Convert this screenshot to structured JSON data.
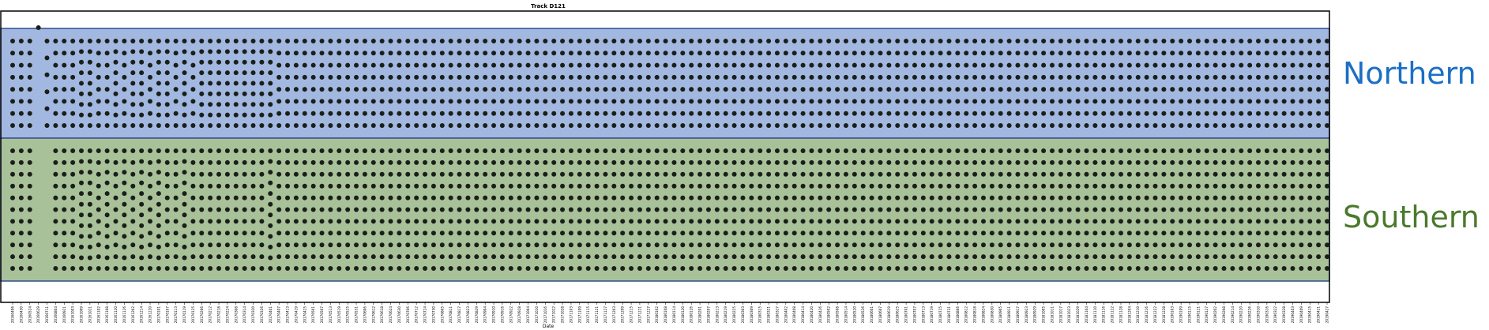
{
  "chart_data": {
    "type": "scatter",
    "title": "Track D121",
    "xlabel": "Date",
    "ylabel": "",
    "grid": false,
    "x_scale": "categorical-dates",
    "colors": {
      "northern_fill": "#a3b8e0",
      "southern_fill": "#a9c199",
      "band_edge": "#2f4f8f",
      "point": "#1a1f1a",
      "northern_text": "#1b6fc4",
      "southern_text": "#4a7a2c"
    },
    "regions": [
      {
        "label": "Northern",
        "rows": 8
      },
      {
        "label": "Southern",
        "rows": 11
      }
    ],
    "x_tick_labels": [
      "20160406",
      "20160430",
      "20160524",
      "20160629",
      "20160711",
      "20160804",
      "20160921",
      "20161003",
      "20161009",
      "20161021",
      "20161102",
      "20161108",
      "20161120",
      "20161126",
      "20161202",
      "20161214",
      "20161220",
      "20170101",
      "20170107",
      "20170113",
      "20170119",
      "20170125",
      "20170206",
      "20170212",
      "20170218",
      "20170224",
      "20170308",
      "20170314",
      "20170320",
      "20170326",
      "20170401",
      "20170407",
      "20170413",
      "20170419",
      "20170425",
      "20170501",
      "20170507",
      "20170513",
      "20170519",
      "20170525",
      "20170531",
      "20170606",
      "20170612",
      "20170618",
      "20170624",
      "20170630",
      "20170706",
      "20170712",
      "20170724",
      "20170730",
      "20170805",
      "20170811",
      "20170817",
      "20170823",
      "20170829",
      "20170904",
      "20170910",
      "20170916",
      "20170922",
      "20170928",
      "20171004",
      "20171010",
      "20171016",
      "20171022",
      "20171028",
      "20171103",
      "20171109",
      "20171115",
      "20171121",
      "20171127",
      "20171203",
      "20171209",
      "20171215",
      "20171221",
      "20171227",
      "20180102",
      "20180108",
      "20180114",
      "20180120",
      "20180126",
      "20180201",
      "20180207",
      "20180213",
      "20180219",
      "20180225",
      "20180303",
      "20180309",
      "20180315",
      "20180321",
      "20180327",
      "20180402",
      "20180408",
      "20180414",
      "20180420",
      "20180426",
      "20180502",
      "20180508",
      "20180514",
      "20180520",
      "20180526",
      "20180601",
      "20180607",
      "20180619",
      "20180625",
      "20180701",
      "20180707",
      "20180713",
      "20180719",
      "20180725",
      "20180731",
      "20180806",
      "20180812",
      "20180818",
      "20180824",
      "20180830",
      "20180905",
      "20180911",
      "20180917",
      "20180923",
      "20180929",
      "20181005",
      "20181011",
      "20181017",
      "20181023",
      "20181029",
      "20181104",
      "20181110",
      "20181116",
      "20181122",
      "20181128",
      "20181204",
      "20181210",
      "20181216",
      "20181222",
      "20181228",
      "20190103",
      "20190109",
      "20190115",
      "20190121",
      "20190127",
      "20190202",
      "20190208",
      "20190214",
      "20190220",
      "20190226",
      "20190310",
      "20190316",
      "20190322",
      "20190328",
      "20190403",
      "20190409",
      "20190415",
      "20190421",
      "20190427"
    ],
    "columns": [
      {
        "date": "20160406",
        "n": 8,
        "s": 11
      },
      {
        "date": "20160430",
        "n": 8,
        "s": 11
      },
      {
        "date": "20160524",
        "n": 8,
        "s": 11
      },
      {
        "date": "20160629",
        "n": 1,
        "s": 0
      },
      {
        "date": "20160711",
        "n": 6,
        "s": 0
      },
      {
        "date": "20160804",
        "n": 8,
        "s": 11
      },
      {
        "date": "20160921",
        "n": 8,
        "s": 11
      },
      {
        "date": "20161003",
        "n": 8,
        "s": 11
      },
      {
        "date": "20161009",
        "n": 9,
        "s": 12
      },
      {
        "date": "20161021",
        "n": 9,
        "s": 12
      },
      {
        "date": "20161102",
        "n": 8,
        "s": 11
      },
      {
        "date": "20161108",
        "n": 8,
        "s": 12
      },
      {
        "date": "20161120",
        "n": 9,
        "s": 11
      },
      {
        "date": "20161126",
        "n": 8,
        "s": 12
      },
      {
        "date": "20161202",
        "n": 9,
        "s": 11
      },
      {
        "date": "20161214",
        "n": 9,
        "s": 12
      },
      {
        "date": "20161220",
        "n": 8,
        "s": 11
      },
      {
        "date": "20170101",
        "n": 9,
        "s": 12
      },
      {
        "date": "20170107",
        "n": 9,
        "s": 11
      },
      {
        "date": "20170113",
        "n": 8,
        "s": 11
      },
      {
        "date": "20170119",
        "n": 9,
        "s": 12
      },
      {
        "date": "20170125",
        "n": 8,
        "s": 11
      },
      {
        "date": "20170206",
        "n": 9,
        "s": 11
      },
      {
        "date": "20170212",
        "n": 9,
        "s": 11
      },
      {
        "date": "20170218",
        "n": 9,
        "s": 11
      },
      {
        "date": "20170224",
        "n": 9,
        "s": 11
      },
      {
        "date": "20170308",
        "n": 9,
        "s": 11
      },
      {
        "date": "20170314",
        "n": 9,
        "s": 11
      },
      {
        "date": "20170320",
        "n": 9,
        "s": 11
      },
      {
        "date": "20170326",
        "n": 9,
        "s": 11
      },
      {
        "date": "20170401",
        "n": 9,
        "s": 12
      },
      {
        "date": "20170407",
        "n": 8,
        "s": 11
      },
      {
        "date": "20170413",
        "n": 8,
        "s": 11
      }
    ],
    "points_per_column_after_20170413": {
      "northern": 8,
      "southern": 11
    }
  }
}
